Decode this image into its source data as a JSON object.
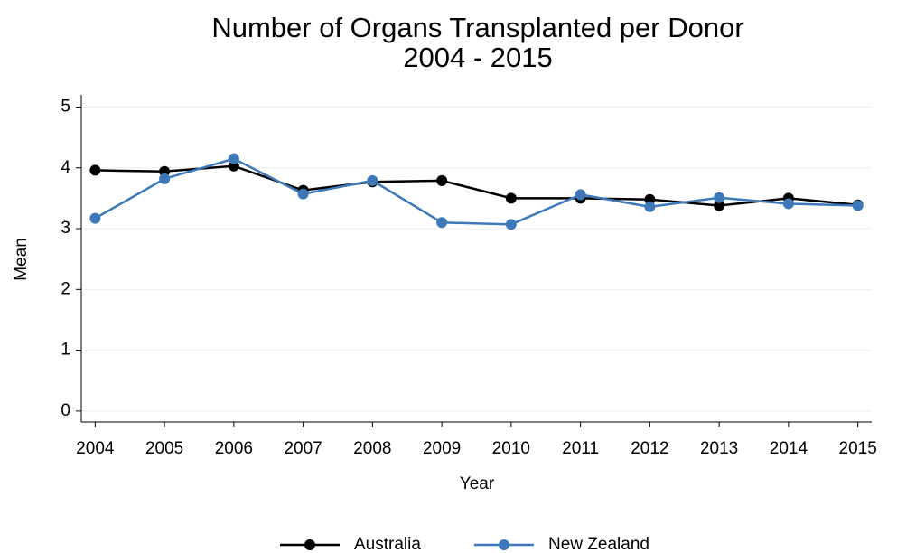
{
  "chart_data": {
    "type": "line",
    "title": [
      "Number of Organs Transplanted per Donor",
      "2004 - 2015"
    ],
    "x_label": "Year",
    "y_label": "Mean",
    "x": [
      2004,
      2005,
      2006,
      2007,
      2008,
      2009,
      2010,
      2011,
      2012,
      2013,
      2014,
      2015
    ],
    "series": [
      {
        "name": "Australia",
        "color": "#000000",
        "values": [
          3.96,
          3.94,
          4.03,
          3.63,
          3.77,
          3.79,
          3.5,
          3.5,
          3.48,
          3.38,
          3.5,
          3.39
        ]
      },
      {
        "name": "New Zealand",
        "color": "#3d78b8",
        "values": [
          3.17,
          3.82,
          4.15,
          3.57,
          3.79,
          3.1,
          3.07,
          3.56,
          3.36,
          3.51,
          3.41,
          3.38
        ]
      }
    ],
    "xlim": [
      2003.8,
      2015.2
    ],
    "xticks": [
      2004,
      2005,
      2006,
      2007,
      2008,
      2009,
      2010,
      2011,
      2012,
      2013,
      2014,
      2015
    ],
    "ylim": [
      -0.18,
      5.2
    ],
    "yticks": [
      0,
      1,
      2,
      3,
      4,
      5
    ],
    "grid": true,
    "legend": "bottom"
  }
}
